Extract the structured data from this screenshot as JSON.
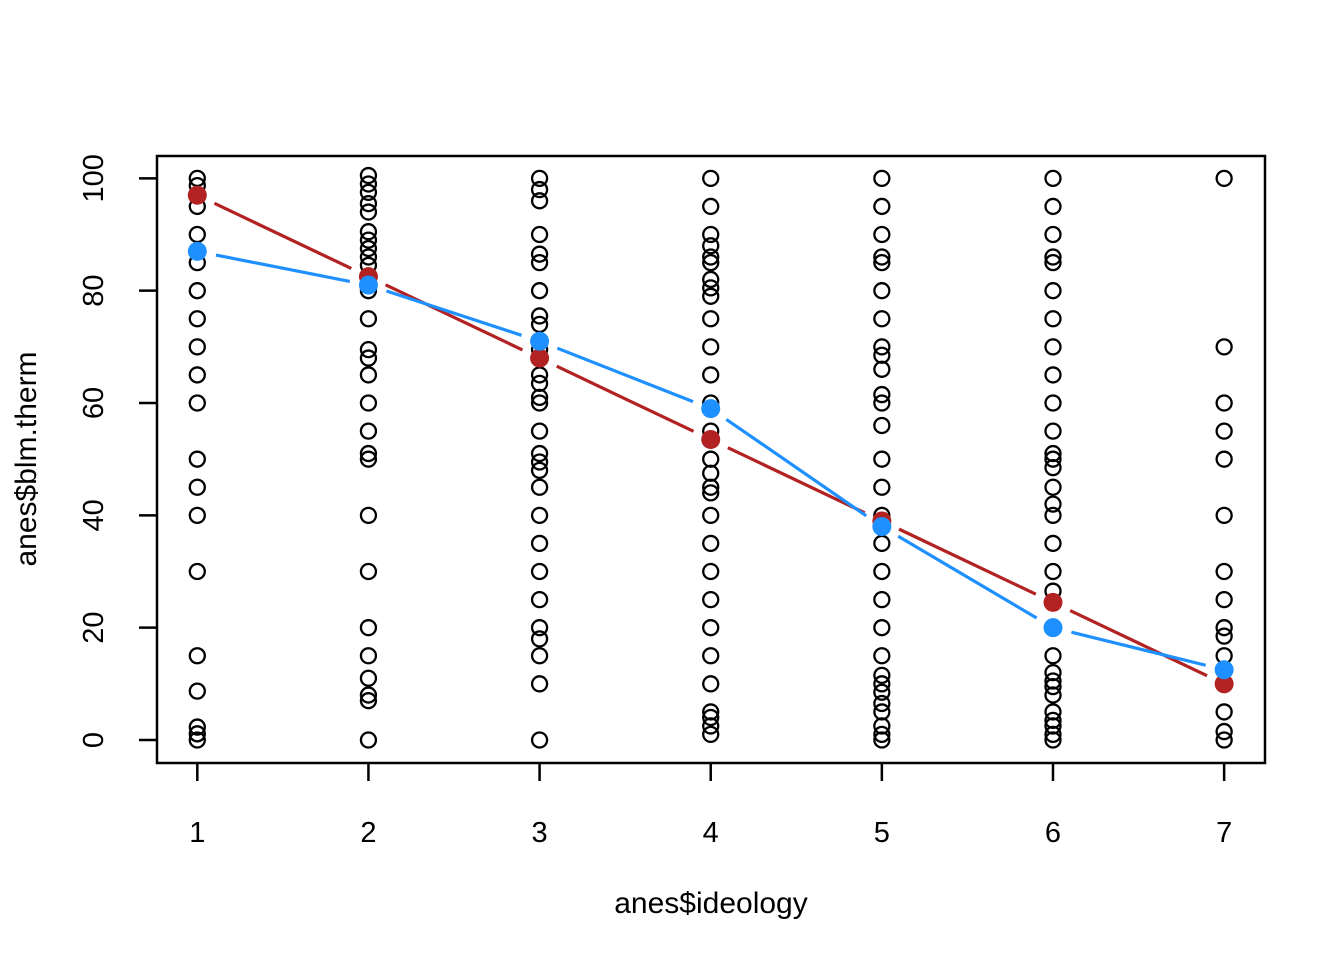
{
  "figure": {
    "background": "#ffffff",
    "xlabel": "anes$ideology",
    "ylabel": "anes$blm.therm"
  },
  "chart_data": {
    "type": "scatter",
    "title": "",
    "xlabel": "anes$ideology",
    "ylabel": "anes$blm.therm",
    "xlim": [
      0.76,
      7.24
    ],
    "ylim": [
      -4,
      104.5
    ],
    "x_ticks": [
      1,
      2,
      3,
      4,
      5,
      6,
      7
    ],
    "y_ticks": [
      0,
      20,
      40,
      60,
      80,
      100
    ],
    "grid": false,
    "legend": "none",
    "point_style": {
      "shape": "open-circle",
      "color": "#000000"
    },
    "scatter_columns": [
      {
        "x": 1,
        "values": [
          100,
          98.7,
          95,
          90,
          85,
          80,
          75,
          70,
          65,
          60,
          50,
          45,
          40,
          30,
          15,
          8.7,
          2.3,
          1.1,
          0
        ]
      },
      {
        "x": 2,
        "values": [
          100.5,
          99,
          97.5,
          95.5,
          94,
          90.5,
          89,
          87.5,
          86,
          84.5,
          80,
          75,
          69.5,
          68,
          65,
          60,
          55,
          51,
          50,
          40,
          30,
          20,
          15,
          11,
          8,
          7,
          0
        ]
      },
      {
        "x": 3,
        "values": [
          100,
          98,
          96,
          90,
          86.5,
          85,
          80,
          75.5,
          74,
          69.5,
          65,
          63.5,
          61,
          60,
          55,
          51,
          49.5,
          48,
          45,
          40,
          35,
          30,
          25,
          20,
          18,
          15,
          10,
          0
        ]
      },
      {
        "x": 4,
        "values": [
          100,
          95,
          90,
          88,
          86,
          85,
          82,
          80.5,
          79,
          75,
          70,
          65,
          60,
          55,
          50,
          47.5,
          45,
          44,
          40,
          35,
          30,
          25,
          20,
          15,
          10,
          5,
          4,
          2.5,
          1
        ]
      },
      {
        "x": 5,
        "values": [
          100,
          95,
          90,
          86,
          85,
          80,
          75,
          70,
          68.5,
          66,
          61.5,
          60,
          56,
          50,
          45,
          40,
          35,
          30,
          25,
          20,
          15,
          11.5,
          10,
          8.5,
          6.5,
          5,
          2.5,
          1,
          0
        ]
      },
      {
        "x": 6,
        "values": [
          100,
          95,
          90,
          86,
          85,
          80,
          75,
          70,
          65,
          60,
          55,
          51,
          50,
          48.5,
          45,
          42,
          40,
          35,
          30,
          26.5,
          15,
          12,
          10.5,
          9.5,
          8,
          5,
          3.5,
          2.5,
          1,
          0
        ]
      },
      {
        "x": 7,
        "values": [
          100,
          70,
          60,
          55,
          50,
          40,
          30,
          25,
          20,
          18.5,
          15,
          5,
          1.5,
          0
        ]
      }
    ],
    "lines": [
      {
        "name": "linear-fit-line",
        "color": "#b22222",
        "style": "type-b-segments-with-point-gaps",
        "x": [
          1,
          2,
          3,
          4,
          5,
          6,
          7
        ],
        "y": [
          97,
          82.5,
          68,
          53.5,
          39,
          24.5,
          10
        ]
      },
      {
        "name": "lowess-fit-line",
        "color": "#1e90ff",
        "style": "type-b-segments-with-point-gaps",
        "x": [
          1,
          2,
          3,
          4,
          5,
          6,
          7
        ],
        "y": [
          87,
          81,
          71,
          59,
          38,
          20,
          12.5
        ]
      }
    ]
  }
}
